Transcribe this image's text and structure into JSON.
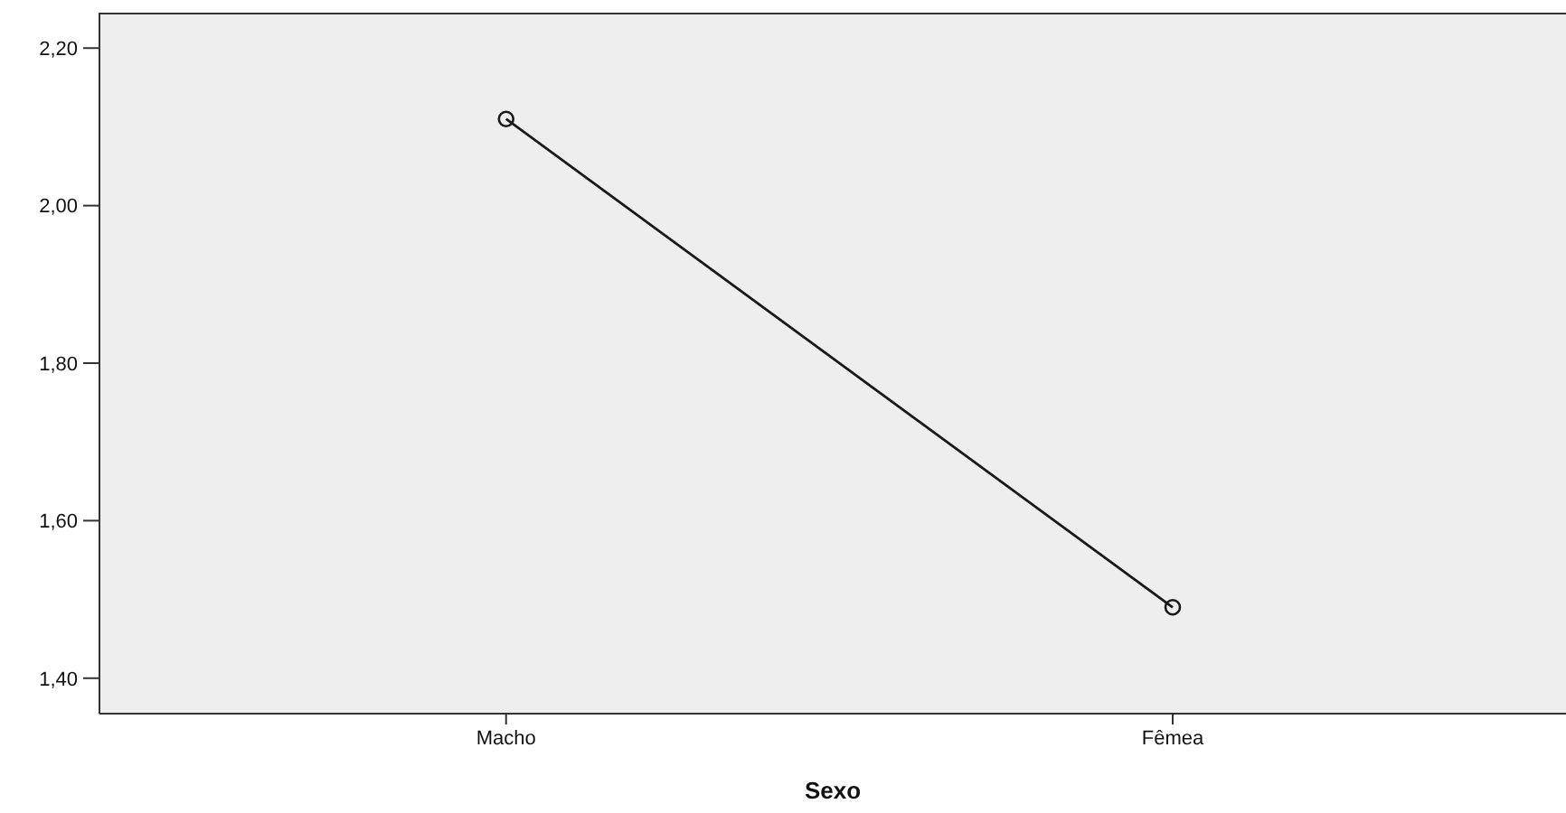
{
  "chart_data": {
    "type": "line",
    "xlabel": "Sexo",
    "categories": [
      "Macho",
      "Fêmea"
    ],
    "series": [
      {
        "color": "#1a1a1a",
        "values": [
          2.11,
          1.49
        ]
      }
    ],
    "ylim": [
      1.355,
      2.245
    ],
    "yticks": [
      {
        "value": 1.4,
        "label": "1,40"
      },
      {
        "value": 1.6,
        "label": "1,60"
      },
      {
        "value": 1.8,
        "label": "1,80"
      },
      {
        "value": 2.0,
        "label": "2,00"
      },
      {
        "value": 2.2,
        "label": "2,20"
      }
    ],
    "marker": "circle",
    "line_style": "solid"
  }
}
